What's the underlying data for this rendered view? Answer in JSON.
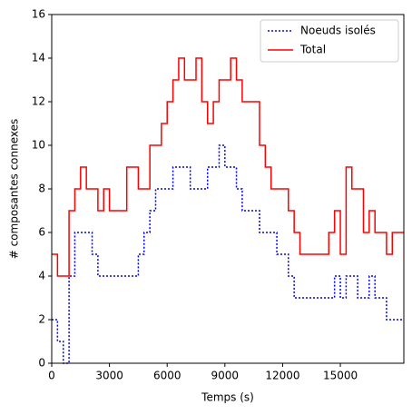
{
  "chart_data": {
    "type": "step",
    "xlabel": "Temps (s)",
    "ylabel": "# composantes connexes",
    "x": [
      0,
      300,
      600,
      900,
      1200,
      1500,
      1800,
      2100,
      2400,
      2700,
      3000,
      3300,
      3600,
      3900,
      4200,
      4500,
      4800,
      5100,
      5400,
      5700,
      6000,
      6300,
      6600,
      6900,
      7200,
      7500,
      7800,
      8100,
      8400,
      8700,
      9000,
      9300,
      9600,
      9900,
      10200,
      10500,
      10800,
      11100,
      11400,
      11700,
      12000,
      12300,
      12600,
      12900,
      13200,
      13500,
      13800,
      14100,
      14400,
      14700,
      15000,
      15300,
      15600,
      15900,
      16200,
      16500,
      16800,
      17100,
      17400,
      17700,
      18000,
      18300
    ],
    "series": [
      {
        "name": "Noeuds isolés",
        "color": "#0000ff",
        "dash": true,
        "values": [
          2,
          1,
          0,
          4,
          6,
          6,
          6,
          5,
          4,
          4,
          4,
          4,
          4,
          4,
          4,
          5,
          6,
          7,
          8,
          8,
          8,
          9,
          9,
          9,
          8,
          8,
          8,
          9,
          9,
          10,
          9,
          9,
          8,
          7,
          7,
          7,
          6,
          6,
          6,
          5,
          5,
          4,
          3,
          3,
          3,
          3,
          3,
          3,
          3,
          4,
          3,
          4,
          4,
          3,
          3,
          4,
          3,
          3,
          2,
          2,
          2,
          2
        ]
      },
      {
        "name": "Total",
        "color": "#ff0000",
        "dash": false,
        "values": [
          5,
          4,
          4,
          7,
          8,
          9,
          8,
          8,
          7,
          8,
          7,
          7,
          7,
          9,
          9,
          8,
          8,
          10,
          10,
          11,
          12,
          13,
          14,
          13,
          13,
          14,
          12,
          11,
          12,
          13,
          13,
          14,
          13,
          12,
          12,
          12,
          10,
          9,
          8,
          8,
          8,
          7,
          6,
          5,
          5,
          5,
          5,
          5,
          6,
          7,
          5,
          9,
          8,
          8,
          6,
          7,
          6,
          6,
          5,
          6,
          6,
          6
        ]
      }
    ],
    "xlim": [
      0,
      18300
    ],
    "xticks": [
      0,
      3000,
      6000,
      9000,
      12000,
      15000
    ],
    "ylim": [
      0,
      16
    ],
    "yticks": [
      0,
      2,
      4,
      6,
      8,
      10,
      12,
      14,
      16
    ],
    "legend": "upper right",
    "grid": false
  }
}
